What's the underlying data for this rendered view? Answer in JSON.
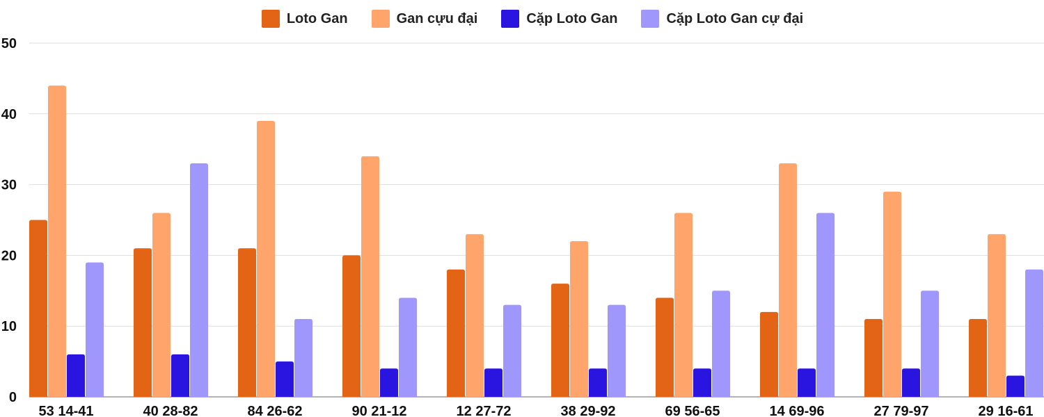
{
  "chart_data": {
    "type": "bar",
    "categories": [
      "53 14-41",
      "40 28-82",
      "84 26-62",
      "90 21-12",
      "12 27-72",
      "38 29-92",
      "69 56-65",
      "14 69-96",
      "27 79-97",
      "29 16-61"
    ],
    "series": [
      {
        "name": "Loto Gan",
        "color": "#e26414",
        "values": [
          25,
          21,
          21,
          20,
          18,
          16,
          14,
          12,
          11,
          11
        ]
      },
      {
        "name": "Gan cựu đại",
        "color": "#ffa46b",
        "values": [
          44,
          26,
          39,
          34,
          23,
          22,
          26,
          33,
          29,
          23
        ]
      },
      {
        "name": "Cặp Loto Gan",
        "color": "#2a14e0",
        "values": [
          6,
          6,
          5,
          4,
          4,
          4,
          4,
          4,
          4,
          3
        ]
      },
      {
        "name": "Cặp Loto Gan cự đại",
        "color": "#a097fc",
        "values": [
          19,
          33,
          11,
          14,
          13,
          13,
          15,
          26,
          15,
          18
        ]
      }
    ],
    "ylim": [
      0,
      50
    ],
    "yticks": [
      0,
      10,
      20,
      30,
      40,
      50
    ],
    "grid": true,
    "legend_position": "top"
  }
}
